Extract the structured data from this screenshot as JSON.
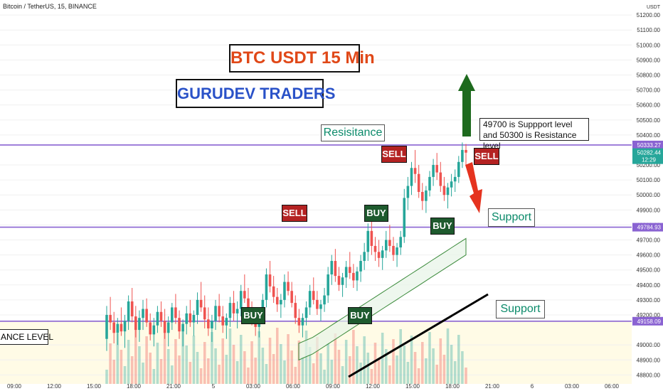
{
  "header": {
    "symbol_line": "Bitcoin / TetherUS, 15, BINANCE"
  },
  "annotations": {
    "title": "BTC USDT 15 Min",
    "brand": "GURUDEV TRADERS",
    "resistance_label": "Resisitance",
    "note": "49700 is Suppport level and 50300 is Resistance level",
    "support_label": "Support",
    "level_label": "ANCE LEVEL",
    "signals": [
      "SELL",
      "BUY",
      "SELL",
      "BUY",
      "BUY",
      "SELL",
      "BUY"
    ]
  },
  "colors": {
    "up": "#26a69a",
    "down": "#ef5350",
    "level_line": "#8a63d2",
    "label_bg": "#1e5a2e",
    "sell_bg": "#b42222",
    "arrow_up": "#1e6a1e",
    "arrow_down": "#e5331f"
  },
  "chart_data": {
    "type": "candlestick",
    "y_axis": {
      "label": "USDT",
      "ticks": [
        "51200.00",
        "51100.00",
        "51000.00",
        "50900.00",
        "50800.00",
        "50700.00",
        "50600.00",
        "50500.00",
        "50400.00",
        "50200.00",
        "50100.00",
        "50000.00",
        "49900.00",
        "49800.00",
        "49700.00",
        "49600.00",
        "49500.00",
        "49400.00",
        "49300.00",
        "49200.00",
        "49000.00",
        "48900.00",
        "48800.00"
      ],
      "range": [
        48740,
        51300
      ]
    },
    "x_axis": {
      "ticks": [
        "09:00",
        "12:00",
        "15:00",
        "18:00",
        "21:00",
        "5",
        "03:00",
        "06:00",
        "09:00",
        "12:00",
        "15:00",
        "18:00",
        "21:00",
        "6",
        "03:00",
        "06:00"
      ]
    },
    "price_labels": [
      {
        "value": "50333.27",
        "kind": "resistance"
      },
      {
        "value": "50282.44",
        "kind": "current",
        "sub": "12:29"
      },
      {
        "value": "49784.93",
        "kind": "support"
      },
      {
        "value": "49158.09",
        "kind": "support"
      }
    ],
    "levels": [
      50333.27,
      49784.93,
      49158.09
    ],
    "candles": [
      [
        49040,
        49260,
        48960,
        49200
      ],
      [
        49200,
        49320,
        49100,
        49150
      ],
      [
        49150,
        49220,
        49010,
        49080
      ],
      [
        49080,
        49180,
        49000,
        49140
      ],
      [
        49140,
        49250,
        49060,
        49090
      ],
      [
        49090,
        49200,
        48980,
        49160
      ],
      [
        49160,
        49330,
        49100,
        49290
      ],
      [
        49290,
        49380,
        49150,
        49190
      ],
      [
        49190,
        49260,
        49050,
        49100
      ],
      [
        49100,
        49230,
        49020,
        49180
      ],
      [
        49180,
        49300,
        49100,
        49240
      ],
      [
        49240,
        49310,
        49120,
        49150
      ],
      [
        49150,
        49210,
        49030,
        49070
      ],
      [
        49070,
        49180,
        48990,
        49130
      ],
      [
        49130,
        49260,
        49080,
        49220
      ],
      [
        49220,
        49290,
        49120,
        49160
      ],
      [
        49160,
        49240,
        49040,
        49080
      ],
      [
        49080,
        49190,
        48990,
        49150
      ],
      [
        49150,
        49280,
        49100,
        49250
      ],
      [
        49250,
        49340,
        49140,
        49180
      ],
      [
        49180,
        49230,
        49040,
        49090
      ],
      [
        49090,
        49170,
        48990,
        49140
      ],
      [
        49140,
        49260,
        49070,
        49210
      ],
      [
        49210,
        49300,
        49120,
        49150
      ],
      [
        49150,
        49230,
        49060,
        49200
      ],
      [
        49200,
        49350,
        49140,
        49300
      ],
      [
        49300,
        49420,
        49220,
        49250
      ],
      [
        49250,
        49330,
        49110,
        49170
      ],
      [
        49170,
        49250,
        49060,
        49110
      ],
      [
        49110,
        49200,
        49020,
        49160
      ],
      [
        49160,
        49300,
        49100,
        49260
      ],
      [
        49260,
        49340,
        49150,
        49190
      ],
      [
        49190,
        49260,
        49080,
        49130
      ],
      [
        49130,
        49210,
        49040,
        49180
      ],
      [
        49180,
        49320,
        49120,
        49280
      ],
      [
        49280,
        49360,
        49160,
        49210
      ],
      [
        49210,
        49290,
        49110,
        49240
      ],
      [
        49240,
        49400,
        49190,
        49360
      ],
      [
        49360,
        49470,
        49280,
        49310
      ],
      [
        49310,
        49380,
        49200,
        49240
      ],
      [
        49240,
        49290,
        49130,
        49170
      ],
      [
        49170,
        49250,
        49060,
        49120
      ],
      [
        49120,
        49230,
        49050,
        49200
      ],
      [
        49200,
        49340,
        49150,
        49300
      ],
      [
        49300,
        49510,
        49250,
        49470
      ],
      [
        49470,
        49560,
        49350,
        49390
      ],
      [
        49390,
        49460,
        49280,
        49320
      ],
      [
        49320,
        49380,
        49220,
        49270
      ],
      [
        49270,
        49340,
        49180,
        49300
      ],
      [
        49300,
        49470,
        49250,
        49420
      ],
      [
        49420,
        49490,
        49330,
        49360
      ],
      [
        49360,
        49420,
        49250,
        49280
      ],
      [
        49280,
        49330,
        49140,
        49180
      ],
      [
        49180,
        49240,
        49080,
        49130
      ],
      [
        49130,
        49210,
        49050,
        49180
      ],
      [
        49180,
        49290,
        49130,
        49250
      ],
      [
        49250,
        49400,
        49200,
        49360
      ],
      [
        49360,
        49450,
        49270,
        49300
      ],
      [
        49300,
        49360,
        49200,
        49240
      ],
      [
        49240,
        49300,
        49160,
        49270
      ],
      [
        49270,
        49380,
        49220,
        49330
      ],
      [
        49330,
        49520,
        49280,
        49470
      ],
      [
        49470,
        49600,
        49400,
        49560
      ],
      [
        49560,
        49640,
        49420,
        49460
      ],
      [
        49460,
        49520,
        49360,
        49400
      ],
      [
        49400,
        49480,
        49320,
        49450
      ],
      [
        49450,
        49560,
        49380,
        49520
      ],
      [
        49520,
        49620,
        49440,
        49480
      ],
      [
        49480,
        49540,
        49380,
        49430
      ],
      [
        49430,
        49520,
        49360,
        49490
      ],
      [
        49490,
        49600,
        49420,
        49560
      ],
      [
        49560,
        49680,
        49500,
        49620
      ],
      [
        49620,
        49810,
        49560,
        49760
      ],
      [
        49760,
        49850,
        49600,
        49660
      ],
      [
        49660,
        49720,
        49560,
        49620
      ],
      [
        49620,
        49700,
        49520,
        49580
      ],
      [
        49580,
        49660,
        49500,
        49630
      ],
      [
        49630,
        49760,
        49580,
        49700
      ],
      [
        49700,
        49800,
        49620,
        49660
      ],
      [
        49660,
        49720,
        49560,
        49600
      ],
      [
        49600,
        49680,
        49520,
        49650
      ],
      [
        49650,
        49760,
        49600,
        49720
      ],
      [
        49720,
        50040,
        49680,
        49980
      ],
      [
        49980,
        50120,
        49900,
        50060
      ],
      [
        50060,
        50220,
        50000,
        50180
      ],
      [
        50180,
        50300,
        50080,
        50140
      ],
      [
        50140,
        50200,
        49980,
        50020
      ],
      [
        50020,
        50080,
        49900,
        49960
      ],
      [
        49960,
        50060,
        49880,
        50030
      ],
      [
        50030,
        50160,
        49990,
        50120
      ],
      [
        50120,
        50240,
        50060,
        50200
      ],
      [
        50200,
        50280,
        50100,
        50150
      ],
      [
        50150,
        50220,
        50020,
        50060
      ],
      [
        50060,
        50120,
        49960,
        50000
      ],
      [
        50000,
        50080,
        49910,
        50050
      ],
      [
        50050,
        50140,
        49990,
        50090
      ],
      [
        50090,
        50170,
        50020,
        50120
      ],
      [
        50120,
        50260,
        50080,
        50220
      ],
      [
        50220,
        50350,
        50180,
        50300
      ],
      [
        50300,
        50340,
        50200,
        50282
      ]
    ],
    "moving_average": [
      49010,
      49030,
      49050,
      49080,
      49110,
      49140,
      49170,
      49200,
      49230,
      49260,
      49290,
      49320,
      49350,
      49380,
      49410,
      49440,
      49470,
      49500,
      49530,
      49560,
      49590,
      49620,
      49650,
      49680,
      49710
    ]
  }
}
